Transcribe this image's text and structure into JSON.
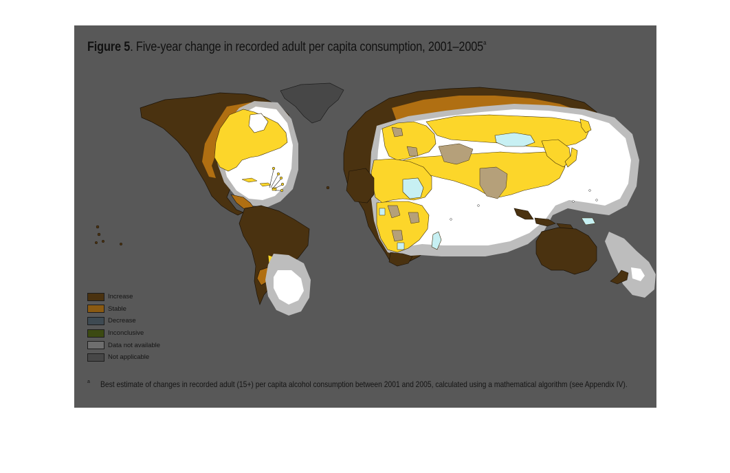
{
  "figure": {
    "title_bold": "Figure 5",
    "title_rest": ". Five-year change in recorded adult per capita consumption, 2001–2005",
    "title_sup": "a",
    "footnote_mark": "a",
    "footnote_text": "Best estimate of changes in recorded adult (15+) per capita alcohol consumption between 2001 and 2005, calculated using a mathematical algorithm (see Appendix IV)."
  },
  "legend": [
    {
      "label": "Increase",
      "color": "#4a3210"
    },
    {
      "label": "Stable",
      "color": "#8a5a12"
    },
    {
      "label": "Decrease",
      "color": "#3e4a52"
    },
    {
      "label": "Inconclusive",
      "color": "#3c4a12"
    },
    {
      "label": "Data not available",
      "color": "#6e6e6e"
    },
    {
      "label": "Not applicable",
      "color": "#474747"
    }
  ],
  "map": {
    "colors": {
      "increase": "#4a3210",
      "stable": "#b06f12",
      "highlight": "#fcd62a",
      "highlight_light": "#b5a07a",
      "water_light": "#c7f0f3",
      "spotlight": "#ffffff",
      "spotlight_halo": "#bdbdbd",
      "not_applicable": "#474747",
      "background": "#585858"
    }
  }
}
